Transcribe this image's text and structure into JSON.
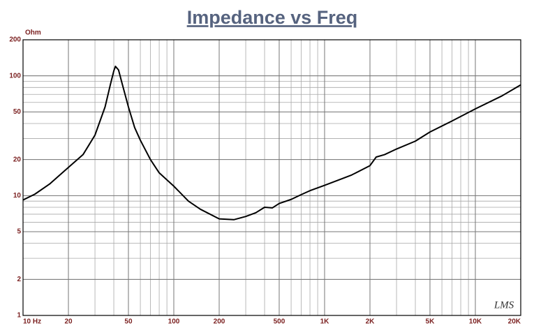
{
  "chart_data": {
    "type": "line",
    "title": "Impedance vs Freq",
    "y_label": "Ohm",
    "watermark": "LMS",
    "xlog": true,
    "ylog": true,
    "grid": true,
    "xlim": [
      10,
      20000
    ],
    "ylim": [
      1,
      200
    ],
    "xticks": [
      {
        "value": 10,
        "label": "10 Hz"
      },
      20,
      50,
      100,
      200,
      500,
      {
        "value": 1000,
        "label": "1K"
      },
      {
        "value": 2000,
        "label": "2K"
      },
      {
        "value": 5000,
        "label": "5K"
      },
      {
        "value": 10000,
        "label": "10K"
      },
      {
        "value": 20000,
        "label": "20K"
      }
    ],
    "yticks": [
      1,
      2,
      5,
      10,
      20,
      50,
      100,
      200
    ],
    "x": [
      10,
      12,
      15,
      20,
      25,
      30,
      35,
      38,
      40,
      41,
      43,
      45,
      50,
      55,
      60,
      70,
      80,
      100,
      125,
      150,
      200,
      250,
      300,
      350,
      400,
      450,
      500,
      600,
      700,
      800,
      1000,
      1500,
      2000,
      2200,
      2500,
      3000,
      4000,
      5000,
      7000,
      10000,
      15000,
      20000
    ],
    "series": [
      {
        "color": "#000000",
        "values": [
          9.2,
          10.3,
          12.5,
          17.2,
          22,
          32,
          55,
          85,
          110,
          120,
          112,
          90,
          55,
          37,
          29,
          20,
          15.5,
          12,
          9,
          7.7,
          6.4,
          6.3,
          6.7,
          7.2,
          8,
          7.9,
          8.6,
          9.3,
          10.2,
          11,
          12.2,
          14.8,
          17.8,
          21,
          22,
          24.5,
          28.5,
          34,
          42,
          53,
          68,
          84
        ]
      }
    ]
  }
}
